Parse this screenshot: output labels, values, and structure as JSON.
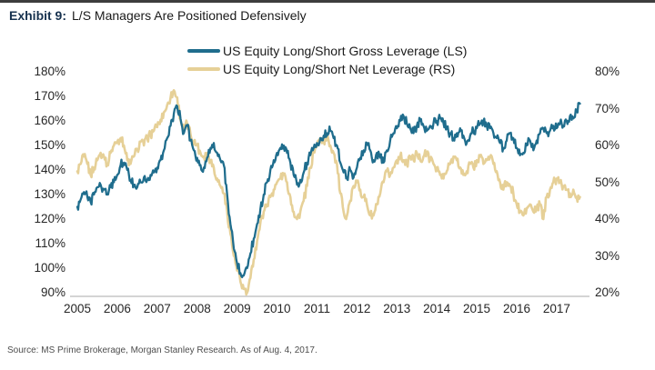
{
  "header": {
    "exhibit_label": "Exhibit 9:",
    "title": "L/S Managers Are Positioned Defensively"
  },
  "source_note": "Source: MS Prime Brokerage, Morgan Stanley Research. As of Aug. 4, 2017.",
  "chart_data": {
    "type": "line",
    "title": "Exhibit 9: L/S Managers Are Positioned Defensively",
    "grid": false,
    "legend_position": "top-center",
    "x_unit": "monthly",
    "x_start": "2005-01",
    "x_end": "2017-08",
    "x_tick_labels": [
      "2005",
      "2006",
      "2007",
      "2008",
      "2009",
      "2010",
      "2011",
      "2012",
      "2013",
      "2014",
      "2015",
      "2016",
      "2017"
    ],
    "left_axis": {
      "min": 90,
      "max": 180,
      "step": 10,
      "tick_labels": [
        "180%",
        "170%",
        "160%",
        "150%",
        "140%",
        "130%",
        "120%",
        "110%",
        "100%",
        "90%"
      ]
    },
    "right_axis": {
      "min": 20,
      "max": 80,
      "step": 10,
      "tick_labels": [
        "80%",
        "70%",
        "60%",
        "50%",
        "40%",
        "30%",
        "20%"
      ]
    },
    "series": [
      {
        "name": "US Equity Long/Short Gross Leverage (LS)",
        "axis": "left",
        "color": "#1f6d8d",
        "values": [
          125,
          128,
          131,
          129,
          127,
          130,
          133,
          134,
          132,
          130,
          133,
          135,
          138,
          142,
          143,
          140,
          136,
          134,
          133,
          135,
          137,
          136,
          138,
          139,
          141,
          144,
          148,
          153,
          158,
          163,
          166,
          161,
          155,
          158,
          152,
          148,
          145,
          142,
          141,
          145,
          149,
          151,
          147,
          144,
          142,
          130,
          118,
          108,
          102,
          98,
          97,
          100,
          106,
          112,
          118,
          124,
          130,
          135,
          140,
          144,
          147,
          149,
          150,
          147,
          143,
          138,
          134,
          136,
          139,
          143,
          146,
          149,
          151,
          153,
          154,
          155,
          156,
          153,
          150,
          143,
          139,
          137,
          140,
          137,
          141,
          145,
          148,
          151,
          148,
          144,
          147,
          145,
          143,
          148,
          152,
          155,
          157,
          160,
          162,
          159,
          157,
          155,
          158,
          160,
          158,
          156,
          158,
          159,
          160,
          161,
          159,
          157,
          155,
          153,
          155,
          157,
          154,
          151,
          154,
          156,
          157,
          159,
          160,
          158,
          157,
          155,
          153,
          151,
          149,
          152,
          155,
          153,
          149,
          146,
          147,
          150,
          152,
          148,
          152,
          155,
          157,
          155,
          156,
          158,
          157,
          159,
          158,
          160,
          162,
          161,
          164,
          167
        ]
      },
      {
        "name": "US Equity Long/Short Net Leverage (RS)",
        "axis": "right",
        "color": "#e6d097",
        "values": [
          53,
          55,
          57,
          55,
          52,
          54,
          56,
          58,
          57,
          55,
          58,
          60,
          61,
          62,
          60,
          56,
          55,
          57,
          59,
          61,
          60,
          62,
          63,
          64,
          65,
          67,
          69,
          71,
          73,
          75,
          73,
          67,
          64,
          66,
          63,
          61,
          60,
          58,
          57,
          58,
          56,
          54,
          51,
          49,
          47,
          42,
          36,
          30,
          26,
          23,
          21,
          20,
          24,
          29,
          34,
          39,
          42,
          44,
          46,
          48,
          50,
          51,
          52,
          50,
          46,
          42,
          40,
          42,
          45,
          49,
          54,
          58,
          60,
          62,
          61,
          62,
          60,
          58,
          55,
          47,
          42,
          41,
          45,
          49,
          50,
          48,
          46,
          44,
          41,
          41,
          44,
          47,
          50,
          53,
          52,
          54,
          56,
          57,
          56,
          55,
          57,
          56,
          58,
          56,
          57,
          58,
          56,
          55,
          54,
          52,
          51,
          53,
          55,
          57,
          56,
          54,
          52,
          53,
          55,
          54,
          56,
          57,
          55,
          56,
          57,
          55,
          53,
          50,
          48,
          50,
          49,
          47,
          44,
          42,
          41,
          43,
          44,
          42,
          43,
          44,
          40,
          46,
          48,
          50,
          51,
          50,
          49,
          48,
          47,
          48,
          46,
          46
        ]
      }
    ]
  }
}
